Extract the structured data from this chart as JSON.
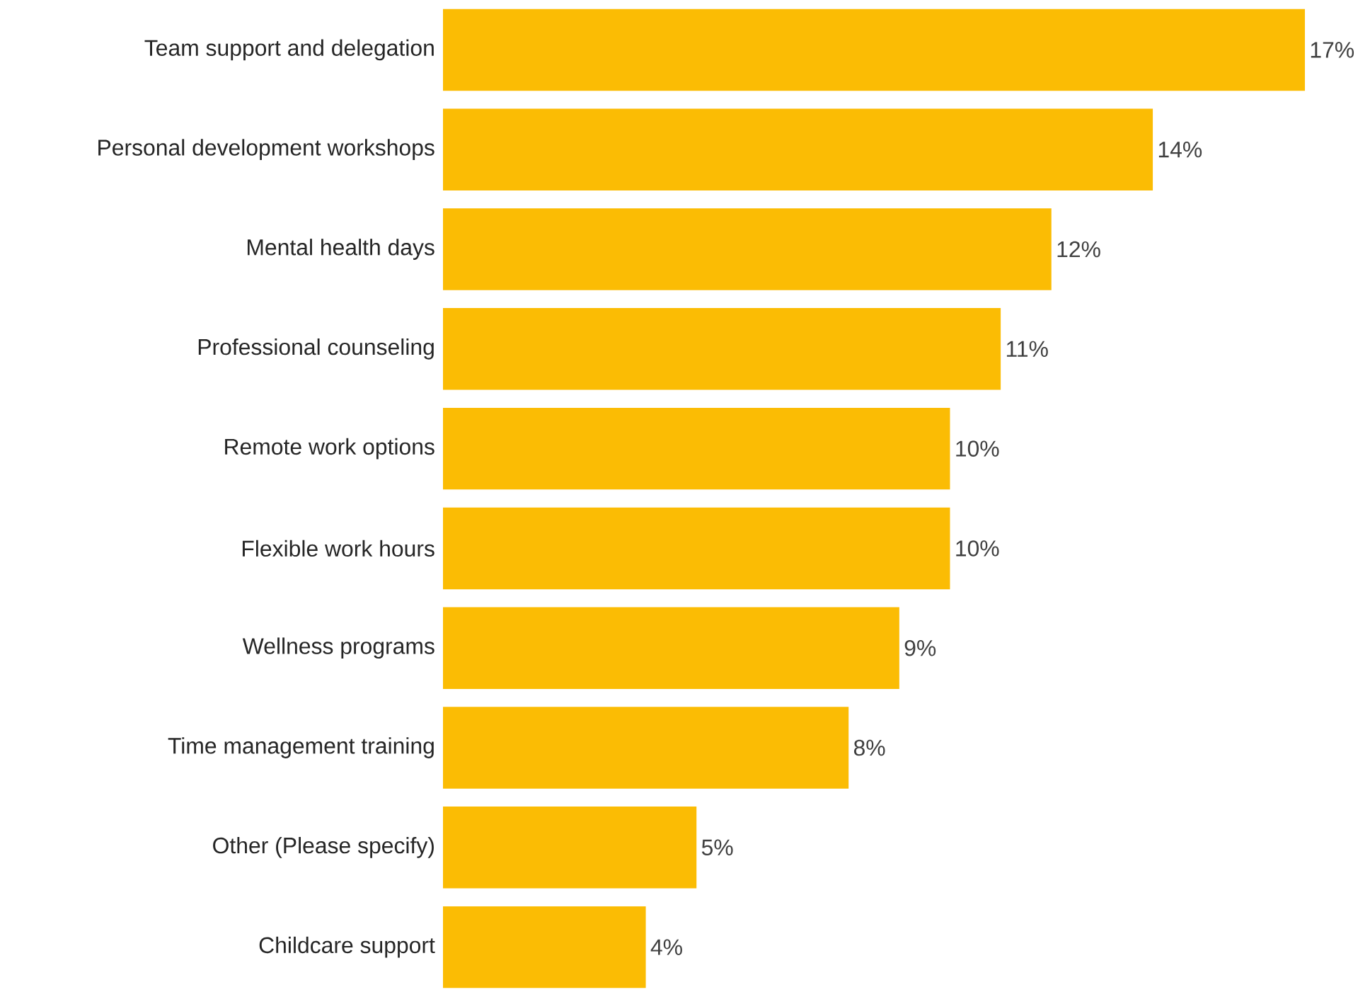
{
  "chart_data": {
    "type": "bar",
    "orientation": "horizontal",
    "color": "#fbbc04",
    "categories": [
      "Team support and delegation",
      "Personal development workshops",
      "Mental health days",
      "Professional counseling",
      "Remote work options",
      "Flexible work hours",
      "Wellness programs",
      "Time management training",
      "Other (Please specify)",
      "Childcare support"
    ],
    "values": [
      17,
      14,
      12,
      11,
      10,
      10,
      9,
      8,
      5,
      4
    ],
    "value_labels": [
      "17%",
      "14%",
      "12%",
      "11%",
      "10%",
      "10%",
      "9%",
      "8%",
      "5%",
      "4%"
    ]
  }
}
